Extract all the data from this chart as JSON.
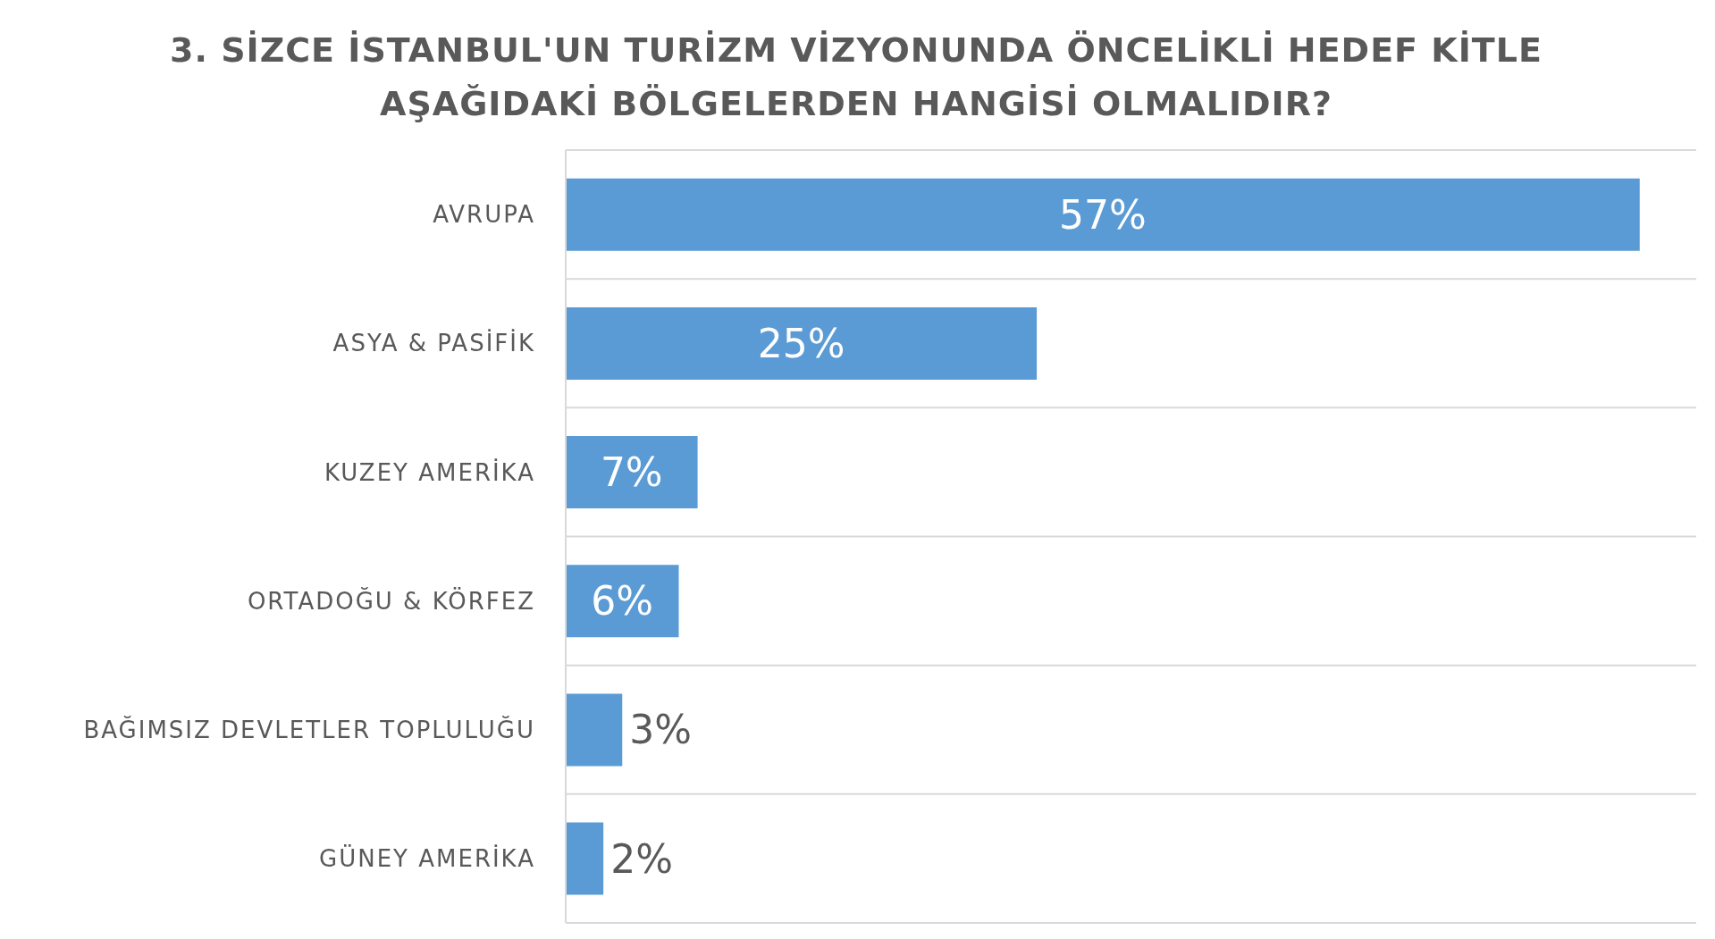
{
  "chart_data": {
    "type": "bar",
    "title": "3. SİZCE İSTANBUL'UN TURİZM VİZYONUNDA ÖNCELİKLİ HEDEF KİTLE AŞAĞIDAKİ BÖLGELERDEN HANGİSİ OLMALIDIR?",
    "orientation": "horizontal",
    "categories": [
      "AVRUPA",
      "ASYA & PASİFİK",
      "KUZEY AMERİKA",
      "ORTADOĞU & KÖRFEZ",
      "BAĞIMSIZ DEVLETLER TOPLULUĞU",
      "GÜNEY AMERİKA"
    ],
    "values": [
      57,
      25,
      7,
      6,
      3,
      2
    ],
    "value_labels": [
      "57%",
      "25%",
      "7%",
      "6%",
      "3%",
      "2%"
    ],
    "color": "#5b9bd5",
    "grid": "y"
  }
}
